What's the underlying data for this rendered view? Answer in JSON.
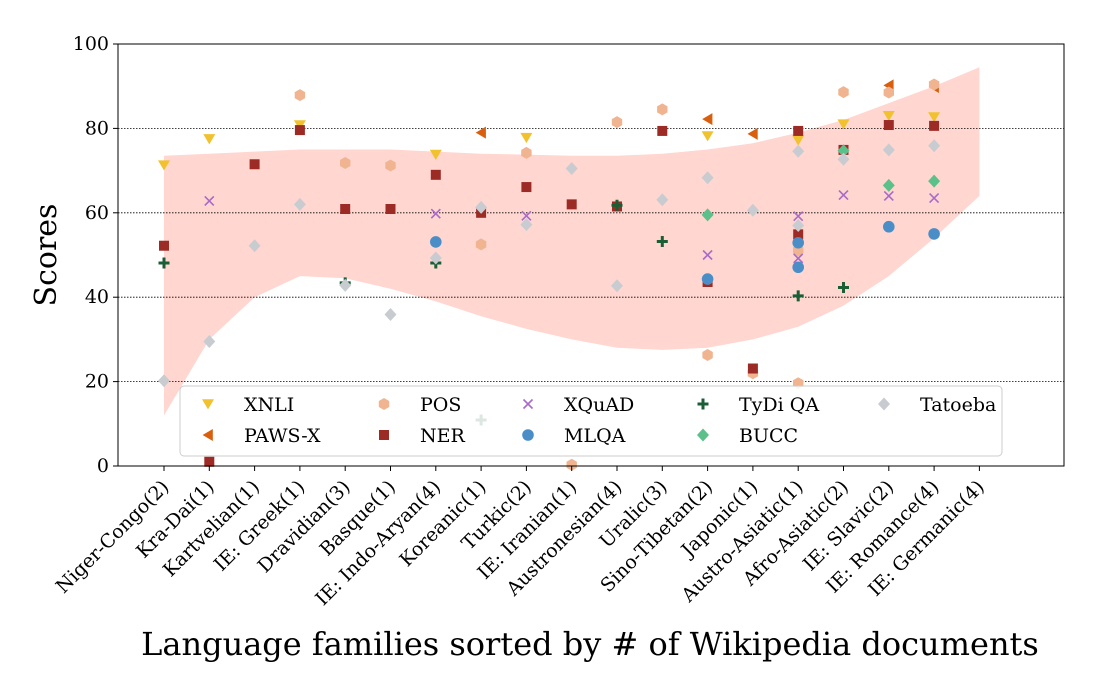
{
  "chart_data": {
    "type": "scatter",
    "title": "",
    "xlabel": "Language families sorted by # of Wikipedia documents",
    "ylabel": "Scores",
    "ylim": [
      0,
      100
    ],
    "yticks": [
      0,
      20,
      40,
      60,
      80,
      100
    ],
    "gridlines_y": [
      20,
      40,
      60,
      80
    ],
    "legend_position": "lower-center",
    "categories": [
      "Niger-Congo(2)",
      "Kra-Dai(1)",
      "Kartvelian(1)",
      "IE: Greek(1)",
      "Dravidian(3)",
      "Basque(1)",
      "IE: Indo-Aryan(4)",
      "Koreanic(1)",
      "Turkic(2)",
      "IE: Iranian(1)",
      "Austronesian(4)",
      "Uralic(3)",
      "Sino-Tibetan(2)",
      "Japonic(1)",
      "Austro-Asiatic(1)",
      "Afro-Asiatic(2)",
      "IE: Slavic(2)",
      "IE: Romance(4)",
      "IE: Germanic(4)"
    ],
    "band": {
      "color": "#ffd6d0",
      "upper": [
        73.5,
        74,
        74.5,
        75,
        75,
        75,
        74.5,
        74,
        73.8,
        73.5,
        73.5,
        74,
        75,
        76.5,
        79,
        82,
        86,
        90,
        94.5
      ],
      "lower": [
        12,
        30,
        40,
        45,
        44.5,
        42,
        39,
        35.5,
        32.5,
        30,
        28,
        27.5,
        28,
        30,
        33,
        38,
        45,
        54,
        64
      ]
    },
    "series": [
      {
        "name": "XNLI",
        "marker": "triangle-down",
        "color": "#f2c12e",
        "points": [
          [
            0,
            71.3
          ],
          [
            1,
            77.5
          ],
          [
            3,
            80.8
          ],
          [
            6,
            73.8
          ],
          [
            8,
            77.8
          ],
          [
            12,
            78.2
          ],
          [
            14,
            77.2
          ],
          [
            15,
            81
          ],
          [
            16,
            83
          ],
          [
            17,
            82.7
          ]
        ]
      },
      {
        "name": "PAWS-X",
        "marker": "triangle-left",
        "color": "#d95f0e",
        "points": [
          [
            7,
            79
          ],
          [
            12,
            82.2
          ],
          [
            13,
            78.7
          ],
          [
            16,
            90.2
          ],
          [
            17,
            89.8
          ]
        ]
      },
      {
        "name": "POS",
        "marker": "hexagon",
        "color": "#f0b490",
        "points": [
          [
            3,
            87.9
          ],
          [
            4,
            71.8
          ],
          [
            5,
            71.2
          ],
          [
            7,
            52.5
          ],
          [
            8,
            74.2
          ],
          [
            9,
            0.3
          ],
          [
            10,
            81.5
          ],
          [
            11,
            84.5
          ],
          [
            12,
            26.3
          ],
          [
            13,
            22
          ],
          [
            14,
            19.6
          ],
          [
            14,
            51.1
          ],
          [
            15,
            88.6
          ],
          [
            16,
            88.5
          ],
          [
            17,
            90.4
          ]
        ]
      },
      {
        "name": "NER",
        "marker": "square",
        "color": "#9c2b26",
        "points": [
          [
            0,
            52.2
          ],
          [
            1,
            1
          ],
          [
            2,
            71.5
          ],
          [
            3,
            79.6
          ],
          [
            4,
            60.9
          ],
          [
            5,
            60.9
          ],
          [
            6,
            69
          ],
          [
            7,
            60
          ],
          [
            8,
            66.1
          ],
          [
            9,
            62
          ],
          [
            10,
            61.5
          ],
          [
            11,
            79.4
          ],
          [
            12,
            43.6
          ],
          [
            13,
            23.1
          ],
          [
            14,
            79.4
          ],
          [
            14,
            54.9
          ],
          [
            15,
            74.9
          ],
          [
            16,
            80.8
          ],
          [
            17,
            80.6
          ]
        ]
      },
      {
        "name": "XQuAD",
        "marker": "x",
        "color": "#a86bc8",
        "points": [
          [
            1,
            62.8
          ],
          [
            6,
            59.8
          ],
          [
            8,
            59.3
          ],
          [
            12,
            50
          ],
          [
            14,
            59.2
          ],
          [
            14,
            49.2
          ],
          [
            15,
            64.2
          ],
          [
            16,
            64
          ],
          [
            17,
            63.5
          ]
        ]
      },
      {
        "name": "MLQA",
        "marker": "circle",
        "color": "#4b8ec7",
        "points": [
          [
            6,
            53.1
          ],
          [
            12,
            44.3
          ],
          [
            14,
            52.9
          ],
          [
            14,
            47.1
          ],
          [
            16,
            56.7
          ],
          [
            17,
            55
          ]
        ]
      },
      {
        "name": "TyDi QA",
        "marker": "plus",
        "color": "#1b5e35",
        "points": [
          [
            0,
            48.1
          ],
          [
            4,
            43.4
          ],
          [
            6,
            48.1
          ],
          [
            7,
            10.9
          ],
          [
            10,
            61.8
          ],
          [
            11,
            53.2
          ],
          [
            14,
            40.3
          ],
          [
            15,
            42.3
          ]
        ]
      },
      {
        "name": "BUCC",
        "marker": "diamond",
        "color": "#5bc08a",
        "points": [
          [
            12,
            59.5
          ],
          [
            15,
            74.7
          ],
          [
            16,
            66.5
          ],
          [
            17,
            67.5
          ]
        ]
      },
      {
        "name": "Tatoeba",
        "marker": "diamond",
        "color": "#c8ccd0",
        "points": [
          [
            0,
            20.2
          ],
          [
            1,
            29.5
          ],
          [
            2,
            52.2
          ],
          [
            3,
            62
          ],
          [
            4,
            42.8
          ],
          [
            5,
            35.9
          ],
          [
            6,
            49.3
          ],
          [
            7,
            61.3
          ],
          [
            8,
            57.2
          ],
          [
            9,
            70.5
          ],
          [
            10,
            42.7
          ],
          [
            11,
            63.1
          ],
          [
            12,
            68.3
          ],
          [
            13,
            60.6
          ],
          [
            14,
            74.6
          ],
          [
            14,
            57
          ],
          [
            15,
            72.7
          ],
          [
            16,
            74.9
          ],
          [
            17,
            75.9
          ]
        ]
      }
    ]
  }
}
